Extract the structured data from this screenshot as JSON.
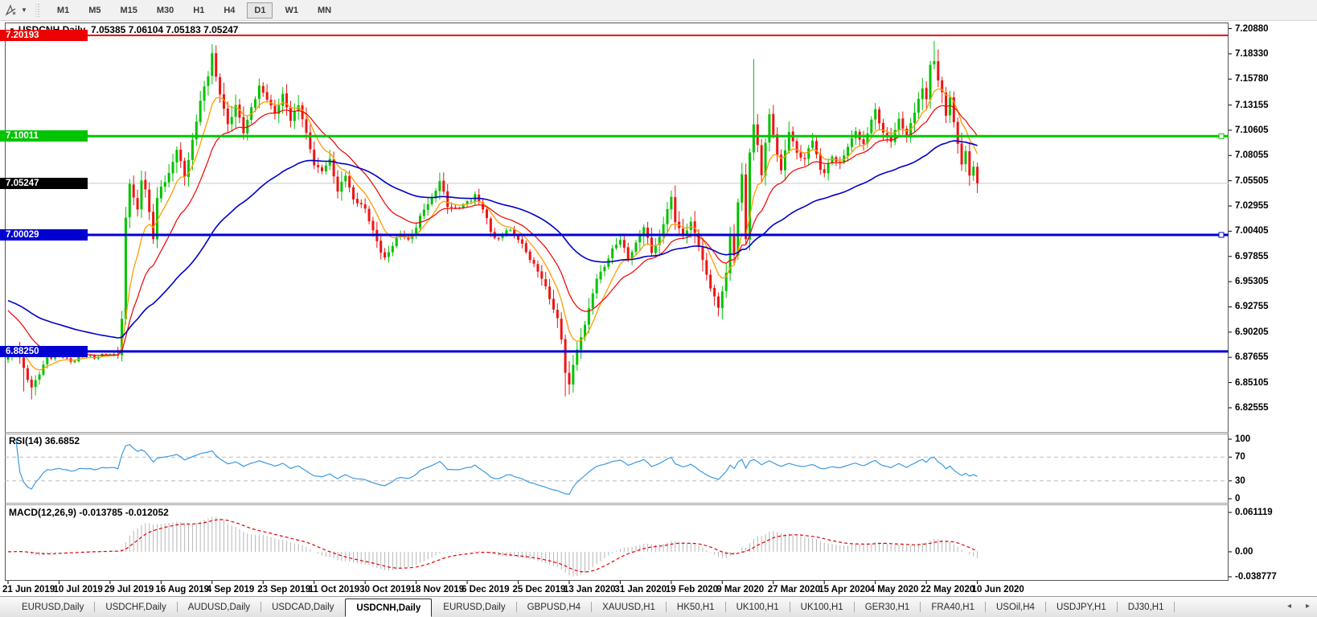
{
  "toolbar": {
    "timeframes": [
      "M1",
      "M5",
      "M15",
      "M30",
      "H1",
      "H4",
      "D1",
      "W1",
      "MN"
    ],
    "active_timeframe": "D1"
  },
  "chart": {
    "title_symbol": "USDCNH,Daily",
    "title_quotes": "7.05385 7.06104 7.05183 7.05247",
    "price_tags": [
      {
        "value": "7.20193",
        "color": "#ef0000",
        "type": "resistance-price-tag"
      },
      {
        "value": "7.10011",
        "color": "#00c400",
        "type": "support-price-tag"
      },
      {
        "value": "7.05247",
        "color": "#000000",
        "type": "current-price-tag"
      },
      {
        "value": "7.00029",
        "color": "#0000d2",
        "type": "support-price-tag"
      },
      {
        "value": "6.88250",
        "color": "#0000d2",
        "type": "support-price-tag"
      }
    ]
  },
  "rsi_panel": {
    "name": "RSI(14)",
    "value": "36.6852",
    "ticks": [
      "100",
      "70",
      "30",
      "0"
    ]
  },
  "macd_panel": {
    "name": "MACD(12,26,9)",
    "values": "-0.013785 -0.012052",
    "ticks": [
      "0.061119",
      "0.00",
      "-0.038777"
    ]
  },
  "tab_bar": {
    "tabs": [
      "EURUSD,Daily",
      "USDCHF,Daily",
      "AUDUSD,Daily",
      "USDCAD,Daily",
      "USDCNH,Daily",
      "EURUSD,Daily",
      "GBPUSD,H4",
      "XAUUSD,H1",
      "HK50,H1",
      "UK100,H1",
      "UK100,H1",
      "GER30,H1",
      "FRA40,H1",
      "USOil,H4",
      "USDJPY,H1",
      "DJ30,H1"
    ],
    "active_index": 4,
    "scroll_left": "◂",
    "scroll_right": "▸"
  },
  "chart_data": {
    "type": "candlestick",
    "symbol": "USDCNH",
    "period": "Daily",
    "ohlc_display": {
      "open": "7.05385",
      "high": "7.06104",
      "low": "7.05183",
      "close": "7.05247"
    },
    "y_tick_labels": [
      "7.20880",
      "7.18330",
      "7.15780",
      "7.13155",
      "7.10605",
      "7.08055",
      "7.05505",
      "7.02955",
      "7.00405",
      "6.97855",
      "6.95305",
      "6.92755",
      "6.90205",
      "6.87655",
      "6.85105",
      "6.82555"
    ],
    "x_tick_labels": [
      "21 Jun 2019",
      "10 Jul 2019",
      "29 Jul 2019",
      "16 Aug 2019",
      "4 Sep 2019",
      "23 Sep 2019",
      "11 Oct 2019",
      "30 Oct 2019",
      "18 Nov 2019",
      "6 Dec 2019",
      "25 Dec 2019",
      "13 Jan 2020",
      "31 Jan 2020",
      "19 Feb 2020",
      "9 Mar 2020",
      "27 Mar 2020",
      "15 Apr 2020",
      "4 May 2020",
      "22 May 2020",
      "10 Jun 2020"
    ],
    "y_axis": {
      "approx_top": 7.215,
      "approx_bottom": 6.801,
      "tick_interval": 0.0255
    },
    "horizontal_lines": [
      {
        "price": 7.20193,
        "color": "#ef0000",
        "width": 2,
        "role": "resistance"
      },
      {
        "price": 7.10011,
        "color": "#00c800",
        "width": 3,
        "role": "resistance"
      },
      {
        "price": 7.05247,
        "color": "#c9c9c9",
        "width": 1,
        "role": "current-price"
      },
      {
        "price": 7.00029,
        "color": "#0000d2",
        "width": 3,
        "role": "support"
      },
      {
        "price": 6.8825,
        "color": "#0000d2",
        "width": 3,
        "role": "support"
      }
    ],
    "candles": {
      "count": 248,
      "up_color": "#00c200",
      "down_color": "#ee1414",
      "close_anchors": [
        [
          0,
          6.878
        ],
        [
          2,
          6.888
        ],
        [
          4,
          6.866
        ],
        [
          6,
          6.845
        ],
        [
          8,
          6.86
        ],
        [
          10,
          6.876
        ],
        [
          13,
          6.879
        ],
        [
          16,
          6.871
        ],
        [
          19,
          6.88
        ],
        [
          22,
          6.875
        ],
        [
          25,
          6.881
        ],
        [
          28,
          6.88
        ],
        [
          29,
          6.915
        ],
        [
          30,
          7.015
        ],
        [
          31,
          7.052
        ],
        [
          32,
          7.038
        ],
        [
          33,
          7.026
        ],
        [
          34,
          7.058
        ],
        [
          35,
          7.046
        ],
        [
          36,
          7.022
        ],
        [
          37,
          6.996
        ],
        [
          38,
          7.036
        ],
        [
          39,
          7.048
        ],
        [
          41,
          7.062
        ],
        [
          43,
          7.088
        ],
        [
          45,
          7.058
        ],
        [
          47,
          7.095
        ],
        [
          49,
          7.138
        ],
        [
          51,
          7.162
        ],
        [
          52,
          7.183
        ],
        [
          53,
          7.158
        ],
        [
          54,
          7.143
        ],
        [
          56,
          7.112
        ],
        [
          58,
          7.132
        ],
        [
          60,
          7.104
        ],
        [
          62,
          7.128
        ],
        [
          64,
          7.152
        ],
        [
          66,
          7.138
        ],
        [
          68,
          7.122
        ],
        [
          70,
          7.142
        ],
        [
          72,
          7.118
        ],
        [
          74,
          7.132
        ],
        [
          76,
          7.102
        ],
        [
          78,
          7.072
        ],
        [
          80,
          7.066
        ],
        [
          82,
          7.076
        ],
        [
          84,
          7.044
        ],
        [
          86,
          7.062
        ],
        [
          88,
          7.036
        ],
        [
          91,
          7.026
        ],
        [
          93,
          7.004
        ],
        [
          95,
          6.984
        ],
        [
          96,
          6.976
        ],
        [
          98,
          6.99
        ],
        [
          100,
          7.002
        ],
        [
          102,
          6.996
        ],
        [
          104,
          7.008
        ],
        [
          106,
          7.026
        ],
        [
          108,
          7.036
        ],
        [
          110,
          7.056
        ],
        [
          112,
          7.03
        ],
        [
          114,
          7.026
        ],
        [
          117,
          7.034
        ],
        [
          119,
          7.04
        ],
        [
          121,
          7.026
        ],
        [
          123,
          7.004
        ],
        [
          125,
          6.996
        ],
        [
          127,
          7.006
        ],
        [
          130,
          6.996
        ],
        [
          132,
          6.984
        ],
        [
          134,
          6.97
        ],
        [
          136,
          6.956
        ],
        [
          138,
          6.936
        ],
        [
          140,
          6.916
        ],
        [
          141,
          6.896
        ],
        [
          142,
          6.86
        ],
        [
          143,
          6.847
        ],
        [
          144,
          6.87
        ],
        [
          146,
          6.896
        ],
        [
          148,
          6.926
        ],
        [
          150,
          6.956
        ],
        [
          152,
          6.968
        ],
        [
          154,
          6.986
        ],
        [
          156,
          6.996
        ],
        [
          158,
          6.976
        ],
        [
          160,
          6.99
        ],
        [
          162,
          7.01
        ],
        [
          164,
          6.984
        ],
        [
          166,
          6.996
        ],
        [
          168,
          7.026
        ],
        [
          169,
          7.038
        ],
        [
          170,
          7.016
        ],
        [
          172,
          6.998
        ],
        [
          174,
          7.012
        ],
        [
          176,
          6.99
        ],
        [
          178,
          6.96
        ],
        [
          180,
          6.936
        ],
        [
          181,
          6.926
        ],
        [
          183,
          6.96
        ],
        [
          184,
          7.002
        ],
        [
          185,
          6.982
        ],
        [
          186,
          7.032
        ],
        [
          187,
          7.062
        ],
        [
          188,
          6.996
        ],
        [
          189,
          7.082
        ],
        [
          190,
          7.112
        ],
        [
          191,
          7.092
        ],
        [
          192,
          7.06
        ],
        [
          193,
          7.096
        ],
        [
          194,
          7.122
        ],
        [
          195,
          7.1
        ],
        [
          197,
          7.064
        ],
        [
          199,
          7.106
        ],
        [
          201,
          7.084
        ],
        [
          203,
          7.076
        ],
        [
          205,
          7.096
        ],
        [
          207,
          7.066
        ],
        [
          208,
          7.064
        ],
        [
          210,
          7.08
        ],
        [
          212,
          7.07
        ],
        [
          214,
          7.09
        ],
        [
          216,
          7.106
        ],
        [
          218,
          7.09
        ],
        [
          220,
          7.116
        ],
        [
          221,
          7.126
        ],
        [
          223,
          7.104
        ],
        [
          225,
          7.096
        ],
        [
          227,
          7.116
        ],
        [
          229,
          7.1
        ],
        [
          231,
          7.126
        ],
        [
          233,
          7.148
        ],
        [
          234,
          7.138
        ],
        [
          235,
          7.17
        ],
        [
          236,
          7.176
        ],
        [
          237,
          7.158
        ],
        [
          238,
          7.144
        ],
        [
          239,
          7.122
        ],
        [
          240,
          7.14
        ],
        [
          241,
          7.112
        ],
        [
          242,
          7.092
        ],
        [
          243,
          7.072
        ],
        [
          244,
          7.084
        ],
        [
          245,
          7.062
        ],
        [
          246,
          7.07
        ],
        [
          247,
          7.0525
        ]
      ],
      "high_overrides": {
        "52": 7.193,
        "190": 7.178,
        "236": 7.1965
      },
      "low_overrides": {
        "4": 6.842,
        "6": 6.834,
        "142": 6.837,
        "143": 6.839
      }
    },
    "moving_averages": [
      {
        "name": "fast-ma",
        "color": "#ff9c00",
        "period": 8,
        "seed": 6.888,
        "width": 1.3
      },
      {
        "name": "medium-ma",
        "color": "#f00000",
        "period": 18,
        "seed": 6.924,
        "width": 1.2
      },
      {
        "name": "slow-ma",
        "color": "#0000c8",
        "period": 55,
        "seed": 6.934,
        "width": 1.6
      }
    ],
    "rsi": {
      "period": 14,
      "last_value": 36.6852,
      "levels": [
        70,
        30
      ],
      "scale": [
        0,
        100
      ],
      "color": "#3b9ae1"
    },
    "macd": {
      "fast": 12,
      "slow": 26,
      "signal": 9,
      "last_macd": -0.013785,
      "last_signal": -0.012052,
      "scale_top": 0.061119,
      "scale_bottom": -0.038777,
      "histogram_color": "#b6b6b6",
      "signal_color": "#e00000"
    }
  }
}
